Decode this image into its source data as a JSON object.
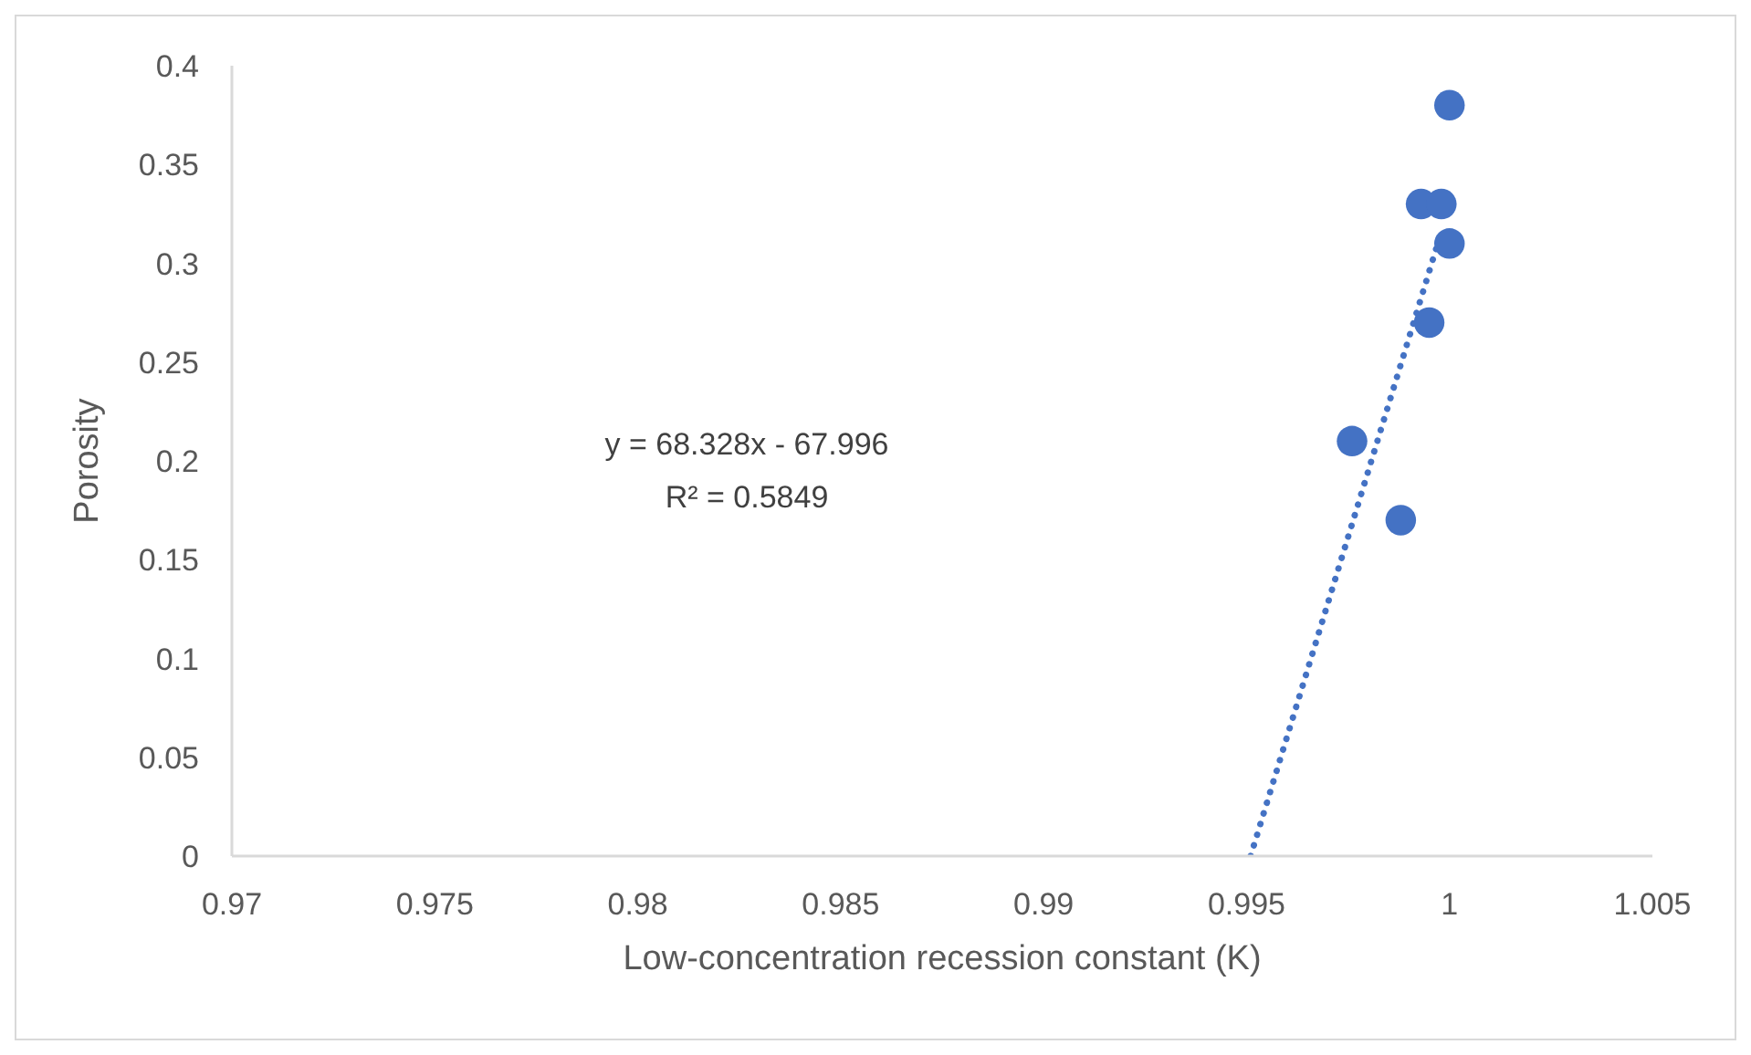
{
  "chart_data": {
    "type": "scatter",
    "xlabel": "Low-concentration recession constant (K)",
    "ylabel": "Porosity",
    "series": [
      {
        "color": "#4472c4",
        "x": [
          1.0,
          0.9993,
          0.9998,
          1.0,
          0.9995,
          0.9976,
          0.9988
        ],
        "values": [
          0.38,
          0.33,
          0.33,
          0.31,
          0.27,
          0.21,
          0.17
        ],
        "marker": "circle"
      },
      {
        "type": "line",
        "color": "#4472c4",
        "x": [
          0.9951,
          0.9998
        ],
        "values": [
          0,
          0.316
        ],
        "line_style": "dotted",
        "marker": "none"
      }
    ],
    "xlim": [
      0.97,
      1.005
    ],
    "xticks": [
      0.97,
      0.975,
      0.98,
      0.985,
      0.99,
      0.995,
      1,
      1.005
    ],
    "ylim": [
      0,
      0.4
    ],
    "yticks": [
      0,
      0.05,
      0.1,
      0.15,
      0.2,
      0.25,
      0.3,
      0.35,
      0.4
    ],
    "annotations": [
      "y = 68.328x - 67.996",
      "R² = 0.5849"
    ],
    "grid": false
  }
}
